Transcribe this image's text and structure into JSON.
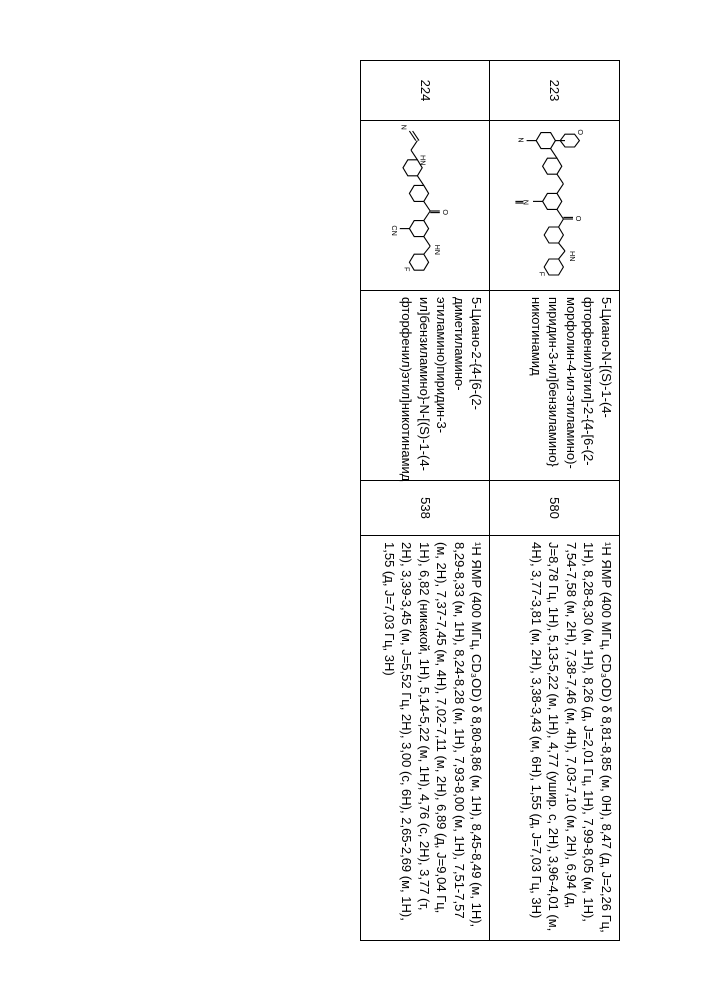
{
  "rows": [
    {
      "id": "223",
      "structure_svg": "s223",
      "name": "5-Циано-N-[(S)-1-(4-фторфенил)этил]-2-{4-[6-(2-морфолин-4-ил-этиламино)-пиридин-3-ил]бензиламино}никотинамид",
      "ms": "580",
      "nmr": "¹Н ЯМР (400 МГц, CD₃OD) δ 8,81-8,85 (м, 0Н), 8,47 (д, J=2,26 Гц, 1Н), 8,28-8,30 (м, 1Н), 8,26 (д, J=2,01 Гц, 1Н), 7,99-8,05 (м, 1Н), 7,54-7,58 (м, 2Н), 7,38-7,46 (м, 4Н), 7,03-7,10 (м, 2Н), 6,94 (д, J=8,78 Гц, 1Н), 5,13-5,22 (м, 1Н), 4,77 (ушир. с, 2Н), 3,96-4,01 (м, 4Н), 3,77-3,81 (м, 2Н), 3,38-3,43 (м, 6Н), 1,55 (д, J=7,03 Гц, 3Н)"
    },
    {
      "id": "224",
      "structure_svg": "s224",
      "name": "5-Циано-2-{4-[6-(2-диметиламино-этиламино)пиридин-3-ил]бензиламино}-N-[(S)-1-(4-фторфенил)этил]никотинамид",
      "ms": "538",
      "nmr": "¹Н ЯМР (400 МГц, CD₃OD) δ 8,80-8,86 (м, 1Н), 8,45-8,49 (м, 1Н), 8,29-8,33 (м, 1Н), 8,24-8,28 (м, 1Н), 7,93-8,00 (м, 1Н), 7,51-7,57 (м, 2Н), 7,37-7,45 (м, 4Н), 7,02-7,11 (м, 2Н), 6,89 (д, J=9,04 Гц, 1Н), 6,82 (никакой, 1Н), 5,14-5,22 (м, 1Н), 4,76 (с, 2Н), 3,77 (т, 2Н), 3,39-3,45 (м, J=5,52 Гц, 2Н), 3,00 (с, 6Н), 2,65-2,69 (м, 1Н), 1,55 (д, J=7,03 Гц, 3Н)"
    }
  ],
  "structures": {
    "s223": "<svg viewBox='0 0 200 140' xmlns='http://www.w3.org/2000/svg'><g stroke='#000' stroke-width='1.4' fill='none'><polygon points='12,78 22,72 32,78 32,90 22,96 12,90'/><line x1='32' y1='78' x2='44' y2='70'/><polygon points='44,70 54,64 64,70 64,82 54,88 44,82'/><line x1='64' y1='70' x2='76' y2='62'/><line x1='76' y1='62' x2='88' y2='70'/><polygon points='88,70 98,64 108,70 108,82 98,88 88,82'/><line x1='108' y1='70' x2='120' y2='62'/><line x1='120' y1='62' x2='130' y2='68'/><polygon points='130,68 140,62 150,68 150,80 140,86 130,80'/><line x1='150' y1='68' x2='160' y2='60'/><line x1='160' y1='60' x2='170' y2='68'/><polygon points='170,68 180,62 190,68 190,80 180,86 170,80'/><line x1='120' y1='62' x2='120' y2='50'/><line x1='118' y1='62' x2='118' y2='50'/><line x1='98' y1='88' x2='98' y2='100'/><text x='96' y='112' font-size='9' stroke='none' fill='#000'>N</text><line x1='98' y1='112' x2='98' y2='122'/><line x1='100' y1='112' x2='100' y2='122'/><line x1='22' y1='96' x2='22' y2='108'/><text x='18' y='118' font-size='9' stroke='none' fill='#000'>N</text><line x1='22' y1='72' x2='22' y2='60'/><polygon points='14,48 22,42 30,48 30,60 22,66 14,60'/></g><text x='186' y='92' font-size='9' fill='#000'>F</text><text x='160' y='54' font-size='9' fill='#000'>HN</text><text x='116' y='46' font-size='9' fill='#000'>O</text><text x='8' y='44' font-size='9' fill='#000'>O</text></svg>",
    "s224": "<svg viewBox='0 0 200 140' xmlns='http://www.w3.org/2000/svg'><g stroke='#000' stroke-width='1.4' fill='none'><line x1='10' y1='88' x2='22' y2='80'/><line x1='10' y1='92' x2='22' y2='84'/><text x='2' y='102' font-size='9' stroke='none' fill='#000'>N</text><line x1='22' y1='82' x2='34' y2='90'/><line x1='34' y1='90' x2='46' y2='82'/><text x='40' y='78' font-size='9' stroke='none' fill='#000'>HN</text><polygon points='46,82 56,76 66,82 66,94 56,100 46,94'/><line x1='66' y1='82' x2='78' y2='74'/><polygon points='78,74 88,68 98,74 98,86 88,92 78,86'/><line x1='98' y1='74' x2='110' y2='66'/><line x1='110' y1='66' x2='122' y2='74'/><polygon points='122,74 132,68 142,74 142,86 132,92 122,86'/><line x1='142' y1='74' x2='154' y2='66'/><line x1='154' y1='66' x2='164' y2='74'/><polygon points='164,74 174,68 184,74 184,86 174,92 164,86'/><line x1='112' y1='66' x2='112' y2='54'/><line x1='110' y1='66' x2='110' y2='54'/><line x1='132' y1='92' x2='132' y2='104'/><text x='128' y='114' font-size='9' stroke='none' fill='#000'>CN</text></g><text x='180' y='98' font-size='9' fill='#000'>F</text><text x='108' y='50' font-size='9' fill='#000'>O</text><text x='152' y='60' font-size='9' fill='#000'>HN</text></svg>"
  }
}
